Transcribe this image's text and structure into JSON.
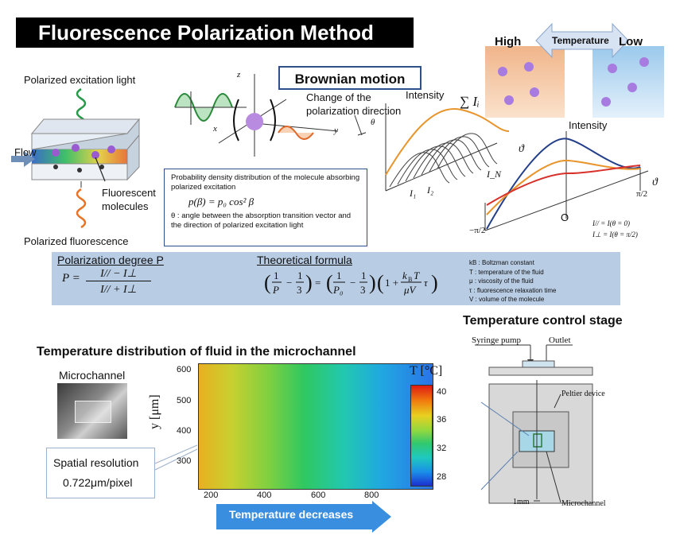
{
  "header": {
    "title": "Fluorescence Polarization Method"
  },
  "left_schematic": {
    "excitation_label": "Polarized excitation light",
    "flow_label": "Flow",
    "molecules_label": "Fluorescent\nmolecules",
    "fluorescence_label": "Polarized fluorescence"
  },
  "brownian": {
    "title": "Brownian motion",
    "change_label": "Change of the\npolarization direction",
    "axis_x": "x",
    "axis_y": "y",
    "axis_z": "z",
    "theta": "θ"
  },
  "probability_box": {
    "line1": "Probability density distribution of the molecule absorbing polarized excitation",
    "formula": "p(β) = p₀ cos² β",
    "line2": "θ : angle between the absorption transition vector and the direction of polarized excitation light"
  },
  "intensity_3d": {
    "ylabel": "Intensity",
    "sum_label": "∑ Iᵢ",
    "i1": "I₁",
    "i2": "I₂",
    "in": "I_N",
    "theta": "ϑ"
  },
  "temperature_panel": {
    "high": "High",
    "temperature": "Temperature",
    "low": "Low",
    "high_color": "#e0301e",
    "low_color": "#3a9a2a"
  },
  "intensity_2d": {
    "ylabel": "Intensity",
    "origin": "O",
    "theta": "ϑ",
    "pi_over_2": "π/2",
    "minus_pi_over_2": "−π/2",
    "i_par": "I// = I(θ = 0)",
    "i_perp": "I⊥ = I(θ = π/2)"
  },
  "formula_band": {
    "pol_title": "Polarization degree P",
    "pol_formula_num": "I// − I⊥",
    "pol_formula_den": "I// + I⊥",
    "theory_title": "Theoretical formula",
    "legend": [
      "kB : Boltzman constant",
      "T : temperature of the fluid",
      "μ : viscosity of the fluid",
      "τ : fluorescence relaxation time",
      "V : volume of the molecule"
    ]
  },
  "distribution": {
    "title": "Temperature distribution of fluid in the microchannel",
    "microchannel_label": "Microchannel",
    "resolution_line1": "Spatial resolution",
    "resolution_line2": "0.722μm/pixel",
    "ylabel": "y [μm]",
    "yticks": [
      "600",
      "500",
      "400",
      "300"
    ],
    "xticks": [
      "200",
      "400",
      "600",
      "800"
    ],
    "colorbar_title": "T [°C]",
    "colorbar_ticks": [
      "40",
      "36",
      "32",
      "28"
    ],
    "arrow_label": "Temperature decreases"
  },
  "stage": {
    "title": "Temperature control stage",
    "syringe": "Syringe pump",
    "outlet": "Outlet",
    "peltier": "Peltier device",
    "scale": "1mm",
    "microchannel": "Microchannel"
  }
}
